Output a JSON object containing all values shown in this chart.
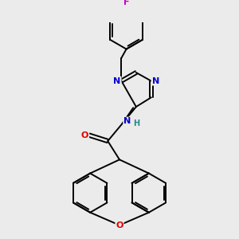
{
  "background_color": "#ebebeb",
  "bond_color": "#000000",
  "atom_colors": {
    "N": "#0000cc",
    "O": "#dd0000",
    "F": "#cc00cc",
    "H": "#228888",
    "C": "#000000"
  },
  "figsize": [
    3.0,
    3.0
  ],
  "dpi": 100,
  "xlim": [
    -4.5,
    4.5
  ],
  "ylim": [
    -5.5,
    5.5
  ]
}
